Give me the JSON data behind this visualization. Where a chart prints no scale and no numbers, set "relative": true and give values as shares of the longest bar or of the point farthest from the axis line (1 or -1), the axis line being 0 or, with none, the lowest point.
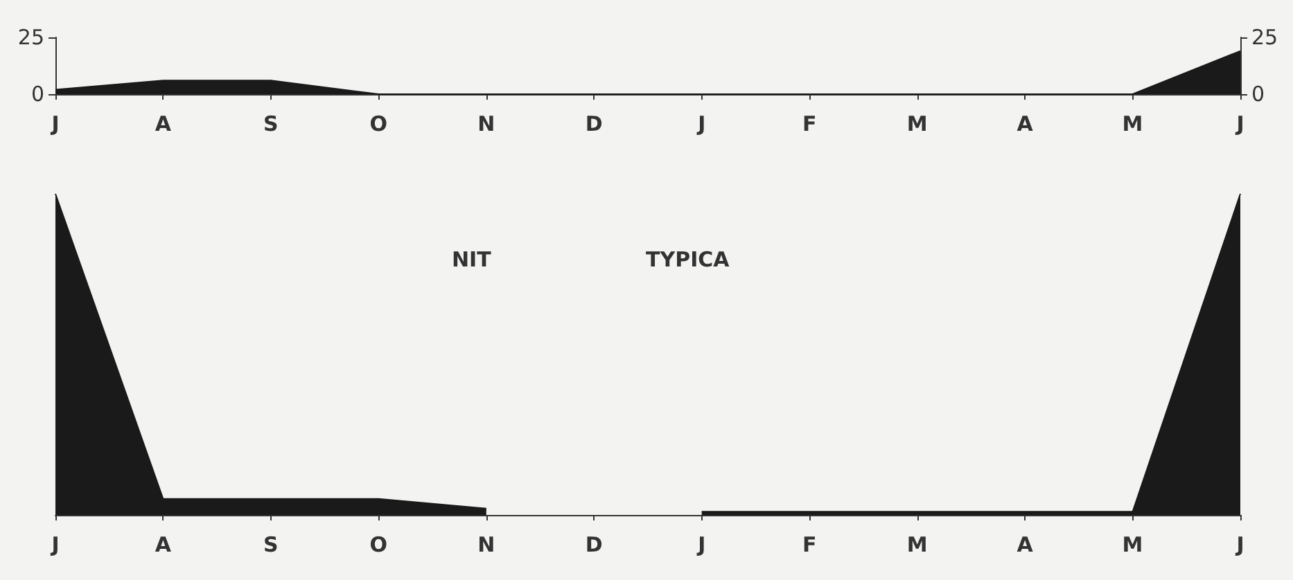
{
  "chart_data": [
    {
      "type": "area",
      "categories": [
        "J",
        "A",
        "S",
        "O",
        "N",
        "D",
        "J",
        "F",
        "M",
        "A",
        "M",
        "J"
      ],
      "series": [
        {
          "color": "#1a1a1a",
          "values": [
            2,
            6,
            6,
            0,
            0,
            0,
            0,
            0,
            0,
            0,
            0,
            19
          ]
        }
      ],
      "ylim": [
        0,
        25
      ],
      "yticks": [
        0,
        25
      ],
      "y2lim": [
        0,
        25
      ],
      "y2ticks": [
        0,
        25
      ],
      "grid": false
    },
    {
      "type": "area",
      "relative": true,
      "annotations": [
        "NIT",
        "TYPICA"
      ],
      "categories": [
        "J",
        "A",
        "S",
        "O",
        "N",
        "D",
        "J",
        "F",
        "M",
        "A",
        "M",
        "J"
      ],
      "series": [
        {
          "color": "#1a1a1a",
          "values": [
            1,
            0.05,
            0.05,
            0.05,
            0.02,
            null,
            0.01,
            0.01,
            0.01,
            0.01,
            0.01,
            1
          ]
        }
      ],
      "grid": false
    }
  ]
}
